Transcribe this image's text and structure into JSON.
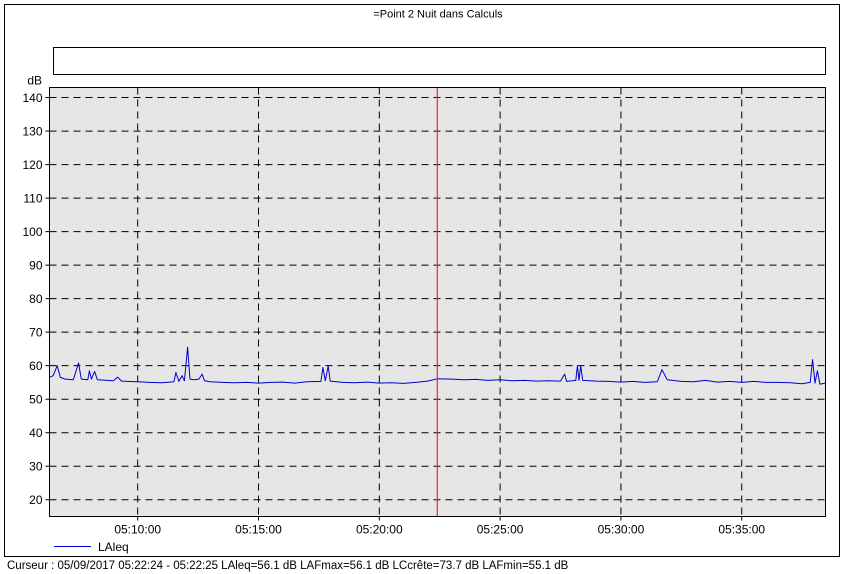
{
  "chart_data": {
    "type": "line",
    "title": "=Point 2 Nuit dans Calculs",
    "ylabel": "dB",
    "xlabel": "",
    "ylim": [
      15,
      143
    ],
    "yticks": [
      20,
      30,
      40,
      50,
      60,
      70,
      80,
      90,
      100,
      110,
      120,
      130,
      140
    ],
    "xticks": [
      "05:10:00",
      "05:15:00",
      "05:20:00",
      "05:25:00",
      "05:30:00",
      "05:35:00"
    ],
    "xlim": [
      "05:06:21",
      "05:38:28"
    ],
    "grid": true,
    "legend": "bottom-left",
    "cursor_time": "05:22:24",
    "colors": {
      "series": "#0000cc",
      "cursor": "#ff2222",
      "plot_bg": "#e6e6e6"
    },
    "series": [
      {
        "name": "LAleq",
        "points": [
          [
            "05:06:21",
            56.5
          ],
          [
            "05:06:30",
            57.0
          ],
          [
            "05:06:40",
            60.0
          ],
          [
            "05:06:48",
            56.5
          ],
          [
            "05:07:00",
            56.0
          ],
          [
            "05:07:20",
            55.8
          ],
          [
            "05:07:33",
            60.8
          ],
          [
            "05:07:40",
            56.0
          ],
          [
            "05:07:56",
            55.8
          ],
          [
            "05:08:00",
            58.5
          ],
          [
            "05:08:05",
            56.0
          ],
          [
            "05:08:13",
            58.3
          ],
          [
            "05:08:20",
            55.8
          ],
          [
            "05:09:00",
            55.5
          ],
          [
            "05:09:10",
            56.6
          ],
          [
            "05:09:20",
            55.4
          ],
          [
            "05:10:00",
            55.2
          ],
          [
            "05:10:30",
            55.0
          ],
          [
            "05:11:00",
            54.9
          ],
          [
            "05:11:30",
            55.2
          ],
          [
            "05:11:35",
            58.0
          ],
          [
            "05:11:42",
            55.3
          ],
          [
            "05:11:50",
            57.0
          ],
          [
            "05:11:56",
            55.5
          ],
          [
            "05:12:04",
            65.5
          ],
          [
            "05:12:10",
            56.0
          ],
          [
            "05:12:20",
            55.8
          ],
          [
            "05:12:32",
            56.0
          ],
          [
            "05:12:40",
            57.5
          ],
          [
            "05:12:46",
            55.5
          ],
          [
            "05:13:00",
            55.2
          ],
          [
            "05:13:30",
            55.0
          ],
          [
            "05:14:00",
            54.9
          ],
          [
            "05:14:30",
            55.0
          ],
          [
            "05:15:00",
            54.8
          ],
          [
            "05:15:30",
            55.0
          ],
          [
            "05:16:00",
            55.1
          ],
          [
            "05:16:30",
            54.8
          ],
          [
            "05:17:00",
            55.2
          ],
          [
            "05:17:35",
            55.3
          ],
          [
            "05:17:40",
            59.5
          ],
          [
            "05:17:46",
            55.5
          ],
          [
            "05:17:53",
            60.0
          ],
          [
            "05:17:58",
            55.4
          ],
          [
            "05:18:30",
            55.0
          ],
          [
            "05:19:00",
            54.9
          ],
          [
            "05:19:30",
            55.1
          ],
          [
            "05:20:00",
            54.8
          ],
          [
            "05:20:30",
            54.9
          ],
          [
            "05:21:00",
            54.7
          ],
          [
            "05:21:30",
            55.0
          ],
          [
            "05:22:00",
            55.4
          ],
          [
            "05:22:24",
            56.1
          ],
          [
            "05:23:00",
            56.0
          ],
          [
            "05:23:30",
            55.8
          ],
          [
            "05:24:00",
            55.9
          ],
          [
            "05:24:30",
            55.6
          ],
          [
            "05:25:00",
            55.8
          ],
          [
            "05:25:30",
            55.5
          ],
          [
            "05:26:00",
            55.6
          ],
          [
            "05:26:30",
            55.4
          ],
          [
            "05:27:00",
            55.5
          ],
          [
            "05:27:30",
            55.4
          ],
          [
            "05:27:40",
            57.5
          ],
          [
            "05:27:45",
            55.3
          ],
          [
            "05:28:08",
            55.6
          ],
          [
            "05:28:12",
            60.0
          ],
          [
            "05:28:16",
            55.6
          ],
          [
            "05:28:20",
            60.0
          ],
          [
            "05:28:25",
            55.6
          ],
          [
            "05:29:00",
            55.4
          ],
          [
            "05:29:30",
            55.3
          ],
          [
            "05:30:00",
            55.1
          ],
          [
            "05:30:30",
            55.3
          ],
          [
            "05:31:00",
            55.0
          ],
          [
            "05:31:30",
            55.2
          ],
          [
            "05:31:42",
            58.8
          ],
          [
            "05:31:55",
            55.8
          ],
          [
            "05:32:30",
            55.3
          ],
          [
            "05:33:00",
            55.2
          ],
          [
            "05:33:30",
            55.6
          ],
          [
            "05:34:00",
            55.1
          ],
          [
            "05:34:30",
            55.3
          ],
          [
            "05:35:00",
            55.0
          ],
          [
            "05:35:30",
            55.3
          ],
          [
            "05:36:00",
            55.0
          ],
          [
            "05:36:30",
            55.0
          ],
          [
            "05:37:00",
            54.9
          ],
          [
            "05:37:30",
            54.6
          ],
          [
            "05:37:50",
            55.0
          ],
          [
            "05:37:56",
            61.8
          ],
          [
            "05:38:02",
            54.8
          ],
          [
            "05:38:08",
            58.5
          ],
          [
            "05:38:14",
            54.5
          ],
          [
            "05:38:28",
            54.8
          ]
        ]
      }
    ]
  },
  "cursor_readout": "Curseur : 05/09/2017 05:22:24 - 05:22:25  LAleq=56.1 dB  LAFmax=56.1 dB  LCcrête=73.7 dB  LAFmin=55.1 dB"
}
